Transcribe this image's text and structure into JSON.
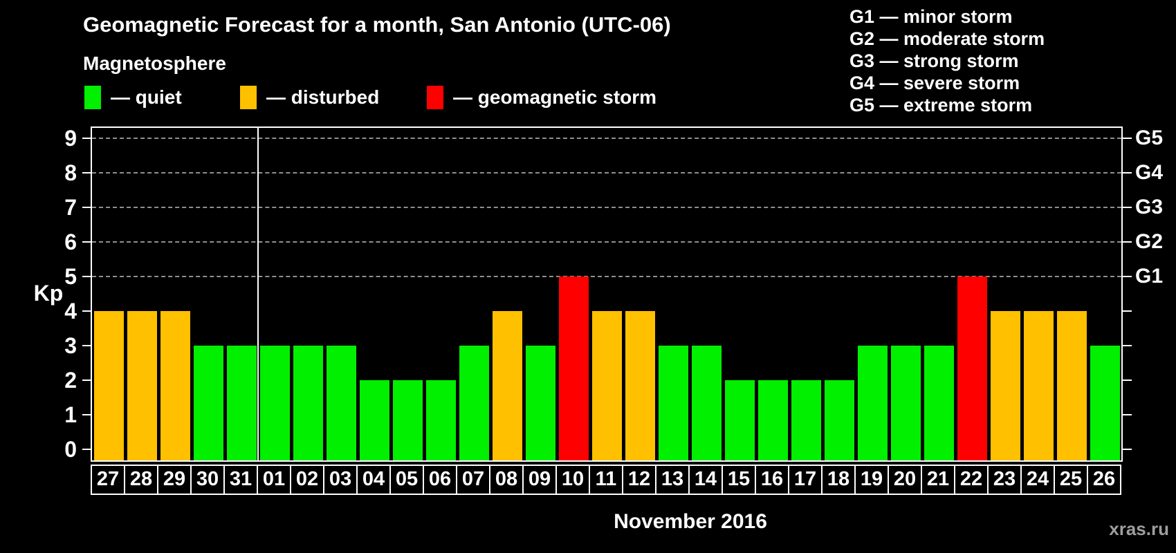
{
  "header": {
    "subtitle": "Magnetosphere",
    "legend": [
      {
        "name": "quiet",
        "label": "— quiet",
        "color": "#00f000"
      },
      {
        "name": "disturbed",
        "label": "— disturbed",
        "color": "#ffc000"
      },
      {
        "name": "storm",
        "label": "— geomagnetic storm",
        "color": "#ff0000"
      }
    ],
    "g_scale_legend": [
      "G1 — minor storm",
      "G2 — moderate storm",
      "G3 — strong storm",
      "G4 — severe storm",
      "G5 — extreme storm"
    ]
  },
  "chart_data": {
    "type": "bar",
    "title": "Geomagnetic Forecast for a month, San Antonio (UTC-06)",
    "xlabel": "November 2016",
    "ylabel": "Kp",
    "ylim": [
      0,
      9
    ],
    "categories": [
      "27",
      "28",
      "29",
      "30",
      "31",
      "01",
      "02",
      "03",
      "04",
      "05",
      "06",
      "07",
      "08",
      "09",
      "10",
      "11",
      "12",
      "13",
      "14",
      "15",
      "16",
      "17",
      "18",
      "19",
      "20",
      "21",
      "22",
      "23",
      "24",
      "25",
      "26"
    ],
    "values": [
      4,
      4,
      4,
      3,
      3,
      3,
      3,
      3,
      2,
      2,
      2,
      3,
      4,
      3,
      5,
      4,
      4,
      3,
      3,
      2,
      2,
      2,
      2,
      3,
      3,
      3,
      5,
      4,
      4,
      4,
      3
    ],
    "statuses": [
      "disturbed",
      "disturbed",
      "disturbed",
      "quiet",
      "quiet",
      "quiet",
      "quiet",
      "quiet",
      "quiet",
      "quiet",
      "quiet",
      "quiet",
      "disturbed",
      "quiet",
      "storm",
      "disturbed",
      "disturbed",
      "quiet",
      "quiet",
      "quiet",
      "quiet",
      "quiet",
      "quiet",
      "quiet",
      "quiet",
      "quiet",
      "storm",
      "disturbed",
      "disturbed",
      "disturbed",
      "quiet"
    ],
    "colors": {
      "quiet": "#00f000",
      "disturbed": "#ffc000",
      "storm": "#ff0000"
    },
    "yticks": [
      0,
      1,
      2,
      3,
      4,
      5,
      6,
      7,
      8,
      9
    ],
    "g_levels": [
      {
        "kp": 5,
        "label": "G1"
      },
      {
        "kp": 6,
        "label": "G2"
      },
      {
        "kp": 7,
        "label": "G3"
      },
      {
        "kp": 8,
        "label": "G4"
      },
      {
        "kp": 9,
        "label": "G5"
      }
    ],
    "gridlines": [
      5,
      6,
      7,
      8,
      9
    ],
    "month_divider_after_index": 4,
    "grid": "horizontal dashed lines at storm levels G1–G5 only",
    "legend_position": "top-left"
  },
  "footer": {
    "watermark": "xras.ru"
  }
}
